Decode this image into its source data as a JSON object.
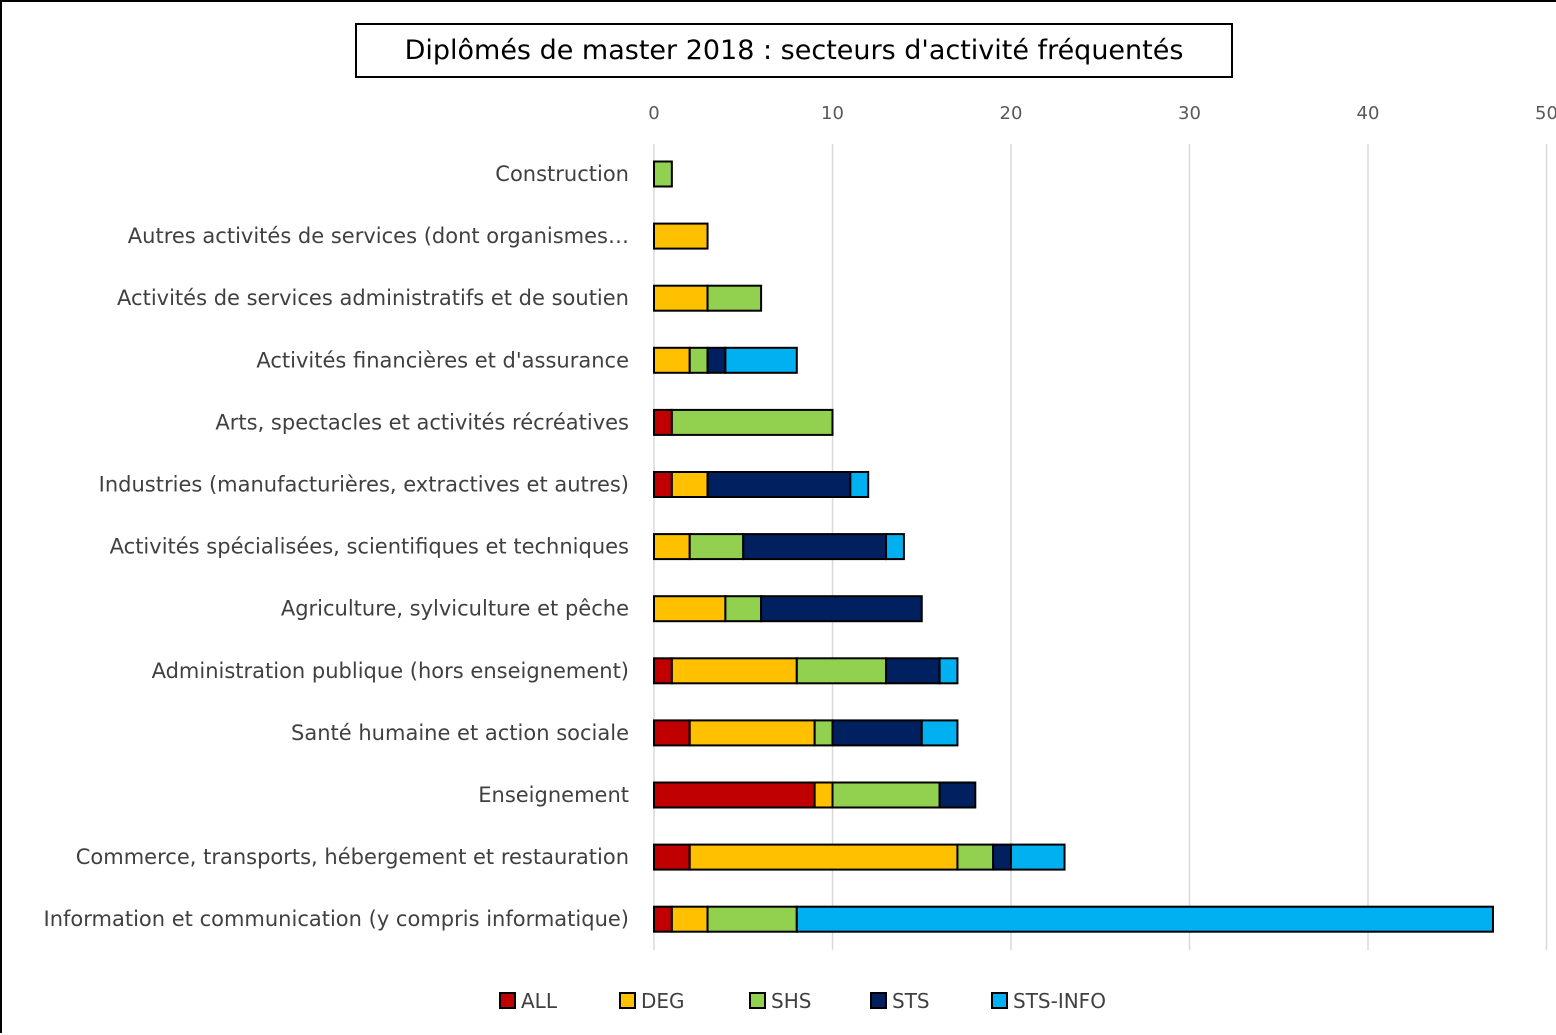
{
  "chart_data": {
    "type": "bar",
    "orientation": "horizontal",
    "stacked": true,
    "title": "Diplômés de master 2018 : secteurs d'activité fréquentés",
    "xlabel": "",
    "ylabel": "",
    "xlim": [
      0,
      50
    ],
    "x_ticks": [
      0,
      10,
      20,
      30,
      40,
      50
    ],
    "x_tick_labels": [
      "0",
      "10",
      "20",
      "30",
      "40",
      "50"
    ],
    "grid": true,
    "legend_position": "bottom",
    "categories": [
      "Construction",
      "Autres activités de services (dont organismes…",
      "Activités de services administratifs et de soutien",
      "Activités financières et d'assurance",
      "Arts, spectacles et activités récréatives",
      "Industries (manufacturières, extractives et autres)",
      "Activités spécialisées, scientifiques et techniques",
      "Agriculture, sylviculture et pêche",
      "Administration publique (hors enseignement)",
      "Santé humaine et action sociale",
      "Enseignement",
      "Commerce, transports, hébergement et restauration",
      "Information et communication (y compris informatique)"
    ],
    "series": [
      {
        "name": "ALL",
        "color": "#C00000",
        "values": [
          0,
          0,
          0,
          0,
          1,
          1,
          0,
          0,
          1,
          2,
          9,
          2,
          1
        ]
      },
      {
        "name": "DEG",
        "color": "#FFC000",
        "values": [
          0,
          3,
          3,
          2,
          0,
          2,
          2,
          4,
          7,
          7,
          1,
          15,
          2
        ]
      },
      {
        "name": "SHS",
        "color": "#92D050",
        "values": [
          1,
          0,
          3,
          1,
          9,
          0,
          3,
          2,
          5,
          1,
          6,
          2,
          5
        ]
      },
      {
        "name": "STS",
        "color": "#002060",
        "values": [
          0,
          0,
          0,
          1,
          0,
          8,
          8,
          9,
          3,
          5,
          2,
          1,
          0
        ]
      },
      {
        "name": "STS-INFO",
        "color": "#00B0F0",
        "values": [
          0,
          0,
          0,
          4,
          0,
          1,
          1,
          0,
          1,
          2,
          0,
          3,
          39
        ]
      }
    ]
  }
}
